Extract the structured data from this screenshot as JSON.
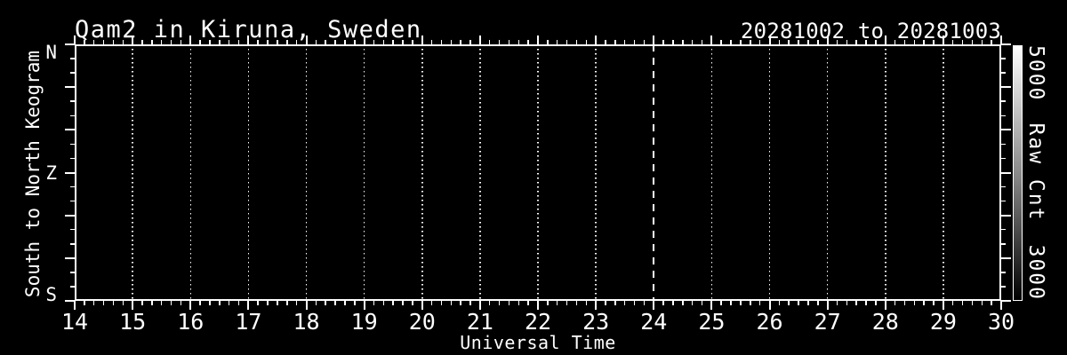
{
  "header": {
    "title": "Qam2 in Kiruna, Sweden",
    "date_range": "20281002 to 20281003"
  },
  "chart_data": {
    "type": "heatmap",
    "title": "Qam2 in Kiruna, Sweden",
    "date_range": "20281002 to 20281003",
    "xlabel": "Universal Time",
    "ylabel": "South to North Keogram",
    "x": {
      "min": 14,
      "max": 30,
      "tick_labels": [
        "14",
        "15",
        "16",
        "17",
        "18",
        "19",
        "20",
        "21",
        "22",
        "23",
        "24",
        "25",
        "26",
        "27",
        "28",
        "29",
        "30"
      ],
      "minor_ticks_per_interval": 5
    },
    "y": {
      "tick_labels": [
        {
          "label": "N",
          "frac": 0.0
        },
        {
          "label": "Z",
          "frac": 0.5
        },
        {
          "label": "S",
          "frac": 1.0
        }
      ],
      "major_divisions": 6,
      "minor_ticks_per_interval": 2
    },
    "gridlines": {
      "style": "dotted",
      "at_hours": [
        15,
        16,
        17,
        18,
        19,
        20,
        21,
        22,
        23,
        25,
        26,
        27,
        28,
        29
      ]
    },
    "event_line": {
      "at_hour": 24,
      "style": "dashed"
    },
    "plot_background": "#000000",
    "values": [],
    "colorbar": {
      "title": "Raw Cnt",
      "top_label": "5000",
      "bottom_label": "3000",
      "top_color": "#ffffff",
      "bottom_color": "#000000"
    }
  },
  "colors": {
    "background": "#000000",
    "foreground": "#ffffff"
  }
}
